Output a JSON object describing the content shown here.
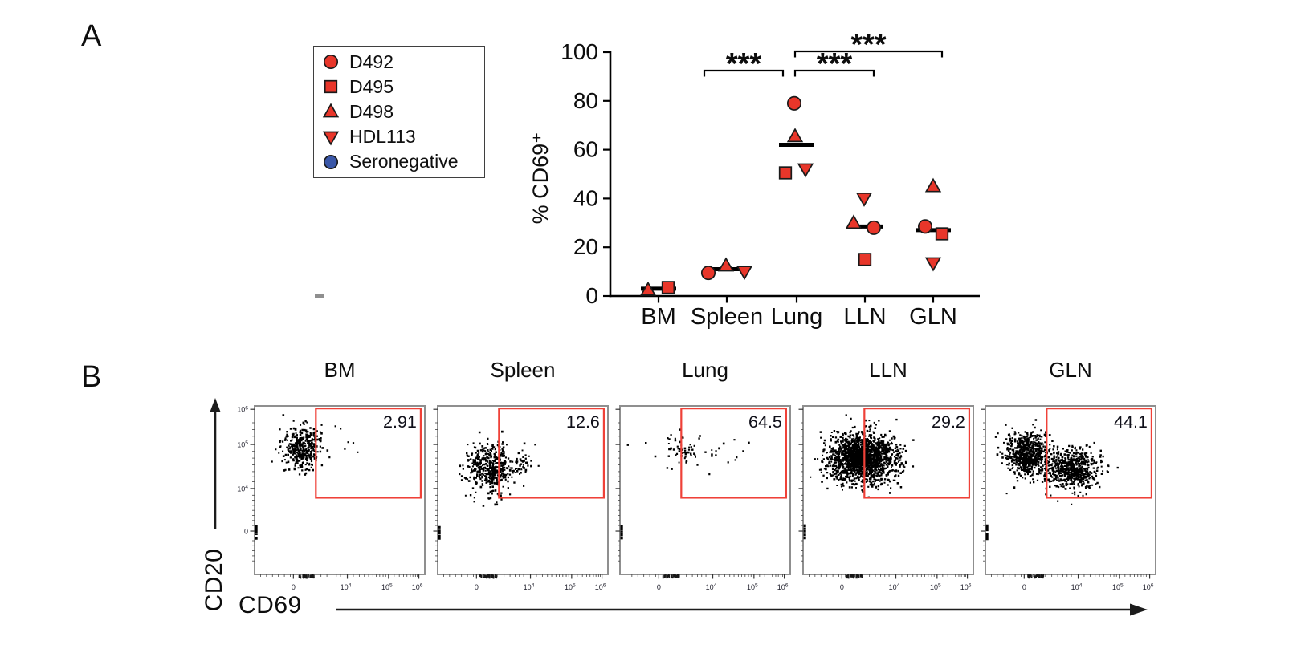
{
  "page": {
    "background": "#ffffff"
  },
  "panels": {
    "a_label": "A",
    "b_label": "B"
  },
  "colors": {
    "marker_red": "#e8362a",
    "marker_blue": "#3a57a8",
    "marker_outline": "#1a1a1a",
    "gate_red": "#ef4138",
    "frame_gray": "#8f8f8f",
    "axis_black": "#000000",
    "dot_black": "#000000"
  },
  "legend": {
    "items": [
      {
        "label": "D492",
        "marker": "circle",
        "color": "#e8362a"
      },
      {
        "label": "D495",
        "marker": "square",
        "color": "#e8362a"
      },
      {
        "label": "D498",
        "marker": "triangle-up",
        "color": "#e8362a"
      },
      {
        "label": "HDL113",
        "marker": "triangle-down",
        "color": "#e8362a"
      },
      {
        "label": "Seronegative",
        "marker": "circle",
        "color": "#3a57a8"
      }
    ]
  },
  "chart_data": [
    {
      "id": "panel-a-cd69-by-tissue",
      "type": "scatter",
      "title": "",
      "xlabel": "",
      "ylabel": "% CD69⁺",
      "ylim": [
        0,
        100
      ],
      "yticks": [
        0,
        20,
        40,
        60,
        80,
        100
      ],
      "categories": [
        "BM",
        "Spleen",
        "Lung",
        "LLN",
        "GLN"
      ],
      "series": [
        {
          "name": "D492",
          "marker": "circle",
          "color": "#e8362a",
          "values": [
            null,
            9.5,
            79,
            28,
            28.5
          ],
          "jitter_dx": [
            0,
            -23,
            -3,
            11,
            -10
          ]
        },
        {
          "name": "D495",
          "marker": "square",
          "color": "#e8362a",
          "values": [
            3.5,
            null,
            50.5,
            15,
            25.5
          ],
          "jitter_dx": [
            12,
            0,
            -14,
            0,
            11
          ]
        },
        {
          "name": "D498",
          "marker": "triangle-up",
          "color": "#e8362a",
          "values": [
            2.5,
            12.5,
            65.5,
            30,
            45
          ],
          "jitter_dx": [
            -13,
            -1,
            -2,
            -14,
            0
          ]
        },
        {
          "name": "HDL113",
          "marker": "triangle-down",
          "color": "#e8362a",
          "values": [
            null,
            10,
            52,
            40,
            13.5
          ],
          "jitter_dx": [
            0,
            22,
            11,
            -1,
            0
          ]
        },
        {
          "name": "Seronegative",
          "marker": "circle",
          "color": "#3a57a8",
          "values": [
            null,
            null,
            null,
            null,
            null
          ],
          "jitter_dx": [
            0,
            0,
            0,
            0,
            0
          ]
        }
      ],
      "medians": [
        3,
        11,
        62,
        28.5,
        27
      ],
      "significance": [
        {
          "between": [
            "Spleen",
            "Lung"
          ],
          "label": "***"
        },
        {
          "between": [
            "Lung",
            "LLN"
          ],
          "label": "***"
        },
        {
          "between": [
            "Lung",
            "GLN"
          ],
          "label": "***"
        }
      ]
    },
    {
      "id": "panel-b-flow-cytometry",
      "type": "scatter",
      "subtype": "flow_cytometry_dot_plots",
      "x_axis": {
        "label": "CD69",
        "ticks": [
          {
            "text": "0",
            "sup": "",
            "f": 0.228
          },
          {
            "text": "10",
            "sup": "4",
            "f": 0.545
          },
          {
            "text": "10",
            "sup": "5",
            "f": 0.787
          },
          {
            "text": "10",
            "sup": "6",
            "f": 0.965
          }
        ]
      },
      "y_axis": {
        "label": "CD20",
        "ticks": [
          {
            "text": "10",
            "sup": "6",
            "f": 0.02
          },
          {
            "text": "10",
            "sup": "5",
            "f": 0.229
          },
          {
            "text": "10",
            "sup": "4",
            "f": 0.49
          },
          {
            "text": "0",
            "sup": "",
            "f": 0.743
          }
        ]
      },
      "gate": {
        "x": 0.36,
        "y": 0.015,
        "w": 0.616,
        "h": 0.53
      },
      "plots": [
        {
          "title": "BM",
          "gate_value": "2.91",
          "clusters": [
            {
              "cx": 0.27,
              "cy": 0.235,
              "sx": 0.055,
              "sy": 0.065,
              "n": 360
            }
          ],
          "extra_dots": [
            [
              0.5,
              0.13
            ],
            [
              0.545,
              0.21
            ],
            [
              0.575,
              0.215
            ],
            [
              0.6,
              0.27
            ],
            [
              0.525,
              0.25
            ],
            [
              0.47,
              0.115
            ],
            [
              0.435,
              0.3
            ]
          ]
        },
        {
          "title": "Spleen",
          "gate_value": "12.6",
          "clusters": [
            {
              "cx": 0.295,
              "cy": 0.36,
              "sx": 0.065,
              "sy": 0.075,
              "n": 420
            },
            {
              "cx": 0.46,
              "cy": 0.33,
              "sx": 0.055,
              "sy": 0.055,
              "n": 55
            }
          ],
          "extra_dots": [
            [
              0.42,
              0.52
            ],
            [
              0.37,
              0.55
            ],
            [
              0.5,
              0.47
            ]
          ]
        },
        {
          "title": "Lung",
          "gate_value": "64.5",
          "clusters": [
            {
              "cx": 0.4,
              "cy": 0.245,
              "sx": 0.115,
              "sy": 0.045,
              "n": 68
            }
          ],
          "extra_dots": [
            [
              0.63,
              0.33
            ],
            [
              0.52,
              0.4
            ],
            [
              0.3,
              0.37
            ],
            [
              0.68,
              0.3
            ]
          ]
        },
        {
          "title": "LLN",
          "gate_value": "29.2",
          "clusters": [
            {
              "cx": 0.345,
              "cy": 0.305,
              "sx": 0.1,
              "sy": 0.072,
              "n": 1750
            }
          ],
          "extra_dots": []
        },
        {
          "title": "GLN",
          "gate_value": "44.1",
          "clusters": [
            {
              "cx": 0.24,
              "cy": 0.275,
              "sx": 0.062,
              "sy": 0.062,
              "n": 640
            },
            {
              "cx": 0.5,
              "cy": 0.375,
              "sx": 0.085,
              "sy": 0.058,
              "n": 620
            }
          ],
          "extra_dots": [
            [
              0.42,
              0.56
            ],
            [
              0.5,
              0.58
            ],
            [
              0.35,
              0.52
            ]
          ]
        }
      ],
      "pileups": {
        "left": {
          "y0": 0.7,
          "y1": 0.79,
          "n": 16
        },
        "bottom": {
          "x0": 0.245,
          "x1": 0.345,
          "n": 26
        }
      }
    }
  ]
}
